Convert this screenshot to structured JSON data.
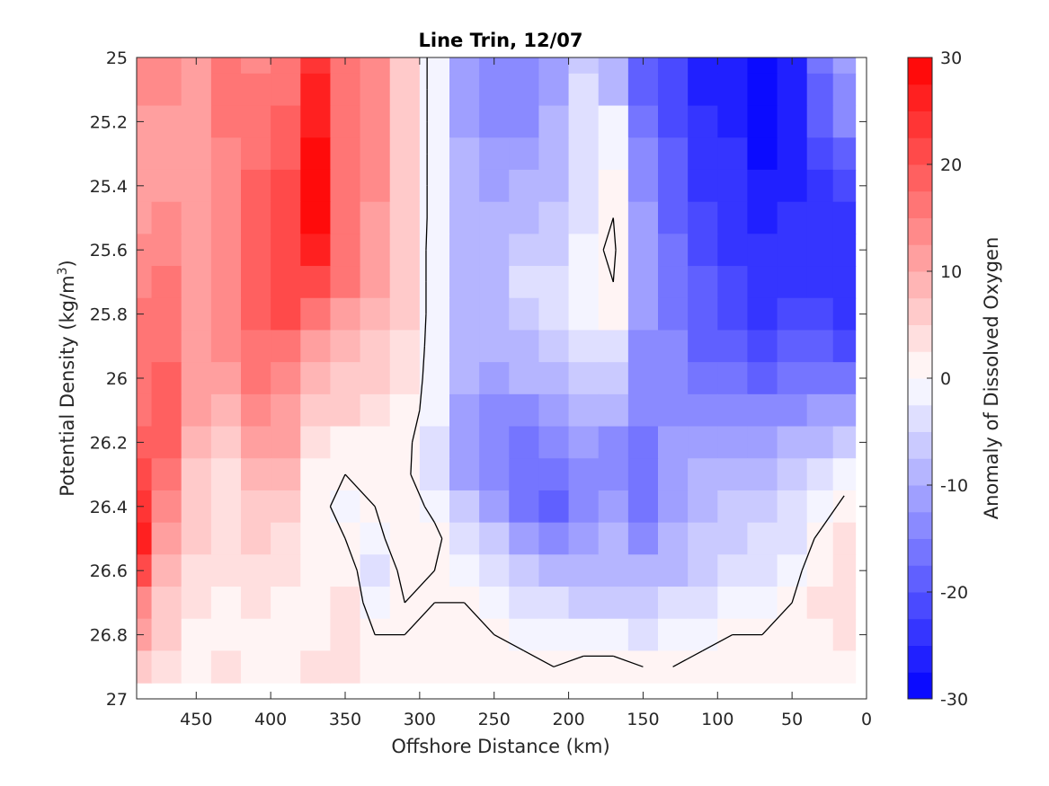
{
  "chart_data": {
    "type": "heatmap",
    "subtype": "filled-contour",
    "title": "Line Trin, 12/07",
    "xlabel": "Offshore Distance (km)",
    "ylabel_main": "Potential Density (kg/m",
    "ylabel_sup": "3",
    "ylabel_close": ")",
    "colorbar_label": "Anomaly of Dissolved Oxygen",
    "xlim": [
      490,
      0
    ],
    "ylim": [
      27,
      25
    ],
    "x_reversed": true,
    "y_reversed": true,
    "xticks": [
      450,
      400,
      350,
      300,
      250,
      200,
      150,
      100,
      50,
      0
    ],
    "xtick_labels": [
      "450",
      "400",
      "350",
      "300",
      "250",
      "200",
      "150",
      "100",
      "50",
      "0"
    ],
    "yticks": [
      25,
      25.2,
      25.4,
      25.6,
      25.8,
      26,
      26.2,
      26.4,
      26.6,
      26.8,
      27
    ],
    "ytick_labels": [
      "25",
      "25.2",
      "25.4",
      "25.6",
      "25.8",
      "26",
      "26.2",
      "26.4",
      "26.6",
      "26.8",
      "27"
    ],
    "clim": [
      -30,
      30
    ],
    "colorbar_ticks": [
      30,
      20,
      10,
      0,
      -10,
      -20,
      -30
    ],
    "colorbar_tick_labels": [
      "30",
      "20",
      "10",
      "0",
      "-10",
      "-20",
      "-30"
    ],
    "contour_levels": [
      -30,
      -27.5,
      -25,
      -22.5,
      -20,
      -17.5,
      -15,
      -12.5,
      -10,
      -7.5,
      -5,
      -2.5,
      0,
      2.5,
      5,
      7.5,
      10,
      12.5,
      15,
      17.5,
      20,
      22.5,
      25,
      27.5,
      30
    ],
    "colors": {
      "positive": "#ff0000",
      "negative": "#0000ff",
      "neutral": "#ffffff",
      "zero_contour": "#000000"
    },
    "grid": false,
    "x": [
      490,
      470,
      450,
      430,
      410,
      390,
      370,
      350,
      330,
      310,
      290,
      270,
      250,
      230,
      210,
      190,
      170,
      150,
      130,
      110,
      90,
      70,
      50,
      30,
      15
    ],
    "y": [
      25,
      25.1,
      25.2,
      25.3,
      25.4,
      25.5,
      25.6,
      25.7,
      25.8,
      25.9,
      26,
      26.1,
      26.2,
      26.3,
      26.4,
      26.5,
      26.6,
      26.7,
      26.8,
      26.9
    ],
    "z": [
      [
        13,
        13,
        12,
        15,
        14,
        16,
        24,
        15,
        13,
        6,
        -2,
        -12,
        -15,
        -14,
        -12,
        -6,
        -10,
        -20,
        -22,
        -26,
        -26,
        -29,
        -26,
        -17,
        -11
      ],
      [
        13,
        13,
        12,
        15,
        15,
        17,
        25,
        15,
        13,
        6,
        -2,
        -12,
        -15,
        -14,
        -11,
        -5,
        -8,
        -18,
        -22,
        -26,
        -26,
        -29,
        -26,
        -18,
        -13
      ],
      [
        12,
        12,
        12,
        15,
        16,
        18,
        27,
        15,
        13,
        6,
        -2,
        -11,
        -13,
        -13,
        -10,
        -4,
        -2,
        -16,
        -21,
        -25,
        -26,
        -29,
        -27,
        -20,
        -15
      ],
      [
        12,
        12,
        12,
        14,
        17,
        19,
        28,
        16,
        13,
        6,
        -2,
        -10,
        -12,
        -11,
        -9,
        -4,
        -1,
        -14,
        -20,
        -24,
        -25,
        -28,
        -27,
        -22,
        -18
      ],
      [
        12,
        12,
        12,
        13,
        18,
        20,
        29,
        17,
        13,
        6,
        -2,
        -9,
        -11,
        -10,
        -8,
        -3,
        0,
        -13,
        -19,
        -23,
        -25,
        -27,
        -26,
        -23,
        -22
      ],
      [
        12,
        13,
        12,
        13,
        19,
        21,
        29,
        17,
        12,
        6,
        -2,
        -8,
        -10,
        -8,
        -7,
        -3,
        0,
        -12,
        -18,
        -22,
        -24,
        -26,
        -25,
        -23,
        -25
      ],
      [
        13,
        14,
        12,
        13,
        19,
        22,
        26,
        17,
        11,
        5,
        -2,
        -8,
        -9,
        -6,
        -6,
        -2,
        1,
        -11,
        -17,
        -21,
        -23,
        -25,
        -24,
        -23,
        -25
      ],
      [
        14,
        15,
        12,
        14,
        19,
        21,
        21,
        15,
        10,
        5,
        -2,
        -8,
        -9,
        -5,
        -5,
        -1,
        0,
        -11,
        -16,
        -20,
        -22,
        -24,
        -23,
        -23,
        -25
      ],
      [
        15,
        16,
        12,
        14,
        18,
        20,
        16,
        12,
        9,
        5,
        -2,
        -8,
        -9,
        -6,
        -5,
        -1,
        0,
        -12,
        -16,
        -19,
        -21,
        -23,
        -22,
        -22,
        -24
      ],
      [
        15,
        17,
        12,
        13,
        17,
        17,
        12,
        9,
        7,
        4,
        -2,
        -9,
        -10,
        -8,
        -6,
        -3,
        -3,
        -13,
        -15,
        -18,
        -20,
        -21,
        -20,
        -20,
        -21
      ],
      [
        16,
        18,
        11,
        11,
        15,
        14,
        9,
        7,
        6,
        3,
        -2,
        -10,
        -12,
        -10,
        -8,
        -6,
        -7,
        -13,
        -14,
        -16,
        -17,
        -18,
        -17,
        -17,
        -17
      ],
      [
        16,
        19,
        10,
        9,
        13,
        12,
        7,
        5,
        4,
        2,
        -2,
        -11,
        -14,
        -13,
        -11,
        -8,
        -10,
        -14,
        -13,
        -14,
        -14,
        -14,
        -13,
        -12,
        -12
      ],
      [
        18,
        19,
        8,
        6,
        11,
        10,
        4,
        2,
        2,
        1,
        -3,
        -12,
        -15,
        -16,
        -14,
        -11,
        -13,
        -16,
        -12,
        -12,
        -11,
        -11,
        -10,
        -8,
        -6
      ],
      [
        21,
        16,
        6,
        4,
        9,
        8,
        1,
        0,
        1,
        1,
        -4,
        -11,
        -14,
        -17,
        -17,
        -13,
        -14,
        -17,
        -11,
        -10,
        -9,
        -8,
        -7,
        -5,
        -2
      ],
      [
        24,
        13,
        5,
        4,
        7,
        6,
        1,
        -1,
        0,
        2,
        -1,
        -7,
        -11,
        -16,
        -18,
        -13,
        -12,
        -17,
        -11,
        -9,
        -7,
        -6,
        -5,
        -2,
        1
      ],
      [
        25,
        11,
        5,
        3,
        5,
        4,
        1,
        0,
        -1,
        2,
        1,
        -3,
        -7,
        -12,
        -14,
        -12,
        -10,
        -14,
        -10,
        -7,
        -6,
        -4,
        -3,
        1,
        3
      ],
      [
        20,
        9,
        4,
        3,
        4,
        3,
        1,
        2,
        -3,
        1,
        0,
        -1,
        -3,
        -7,
        -9,
        -10,
        -9,
        -10,
        -8,
        -6,
        -4,
        -3,
        -1,
        2,
        4
      ],
      [
        14,
        7,
        3,
        2,
        3,
        2,
        1,
        3,
        -2,
        0,
        0,
        0,
        -1,
        -3,
        -5,
        -6,
        -6,
        -7,
        -5,
        -4,
        -2,
        -1,
        0,
        3,
        4
      ],
      [
        10,
        5,
        1,
        2,
        2,
        2,
        2,
        3,
        0,
        0,
        1,
        1,
        0,
        -1,
        -2,
        -2,
        -2,
        -3,
        -2,
        -1,
        0,
        0,
        1,
        2,
        3
      ],
      [
        7,
        4,
        2,
        3,
        2,
        2,
        3,
        4,
        2,
        1,
        2,
        2,
        1,
        1,
        0,
        1,
        1,
        0,
        0,
        1,
        1,
        2,
        1,
        1,
        2
      ]
    ]
  }
}
